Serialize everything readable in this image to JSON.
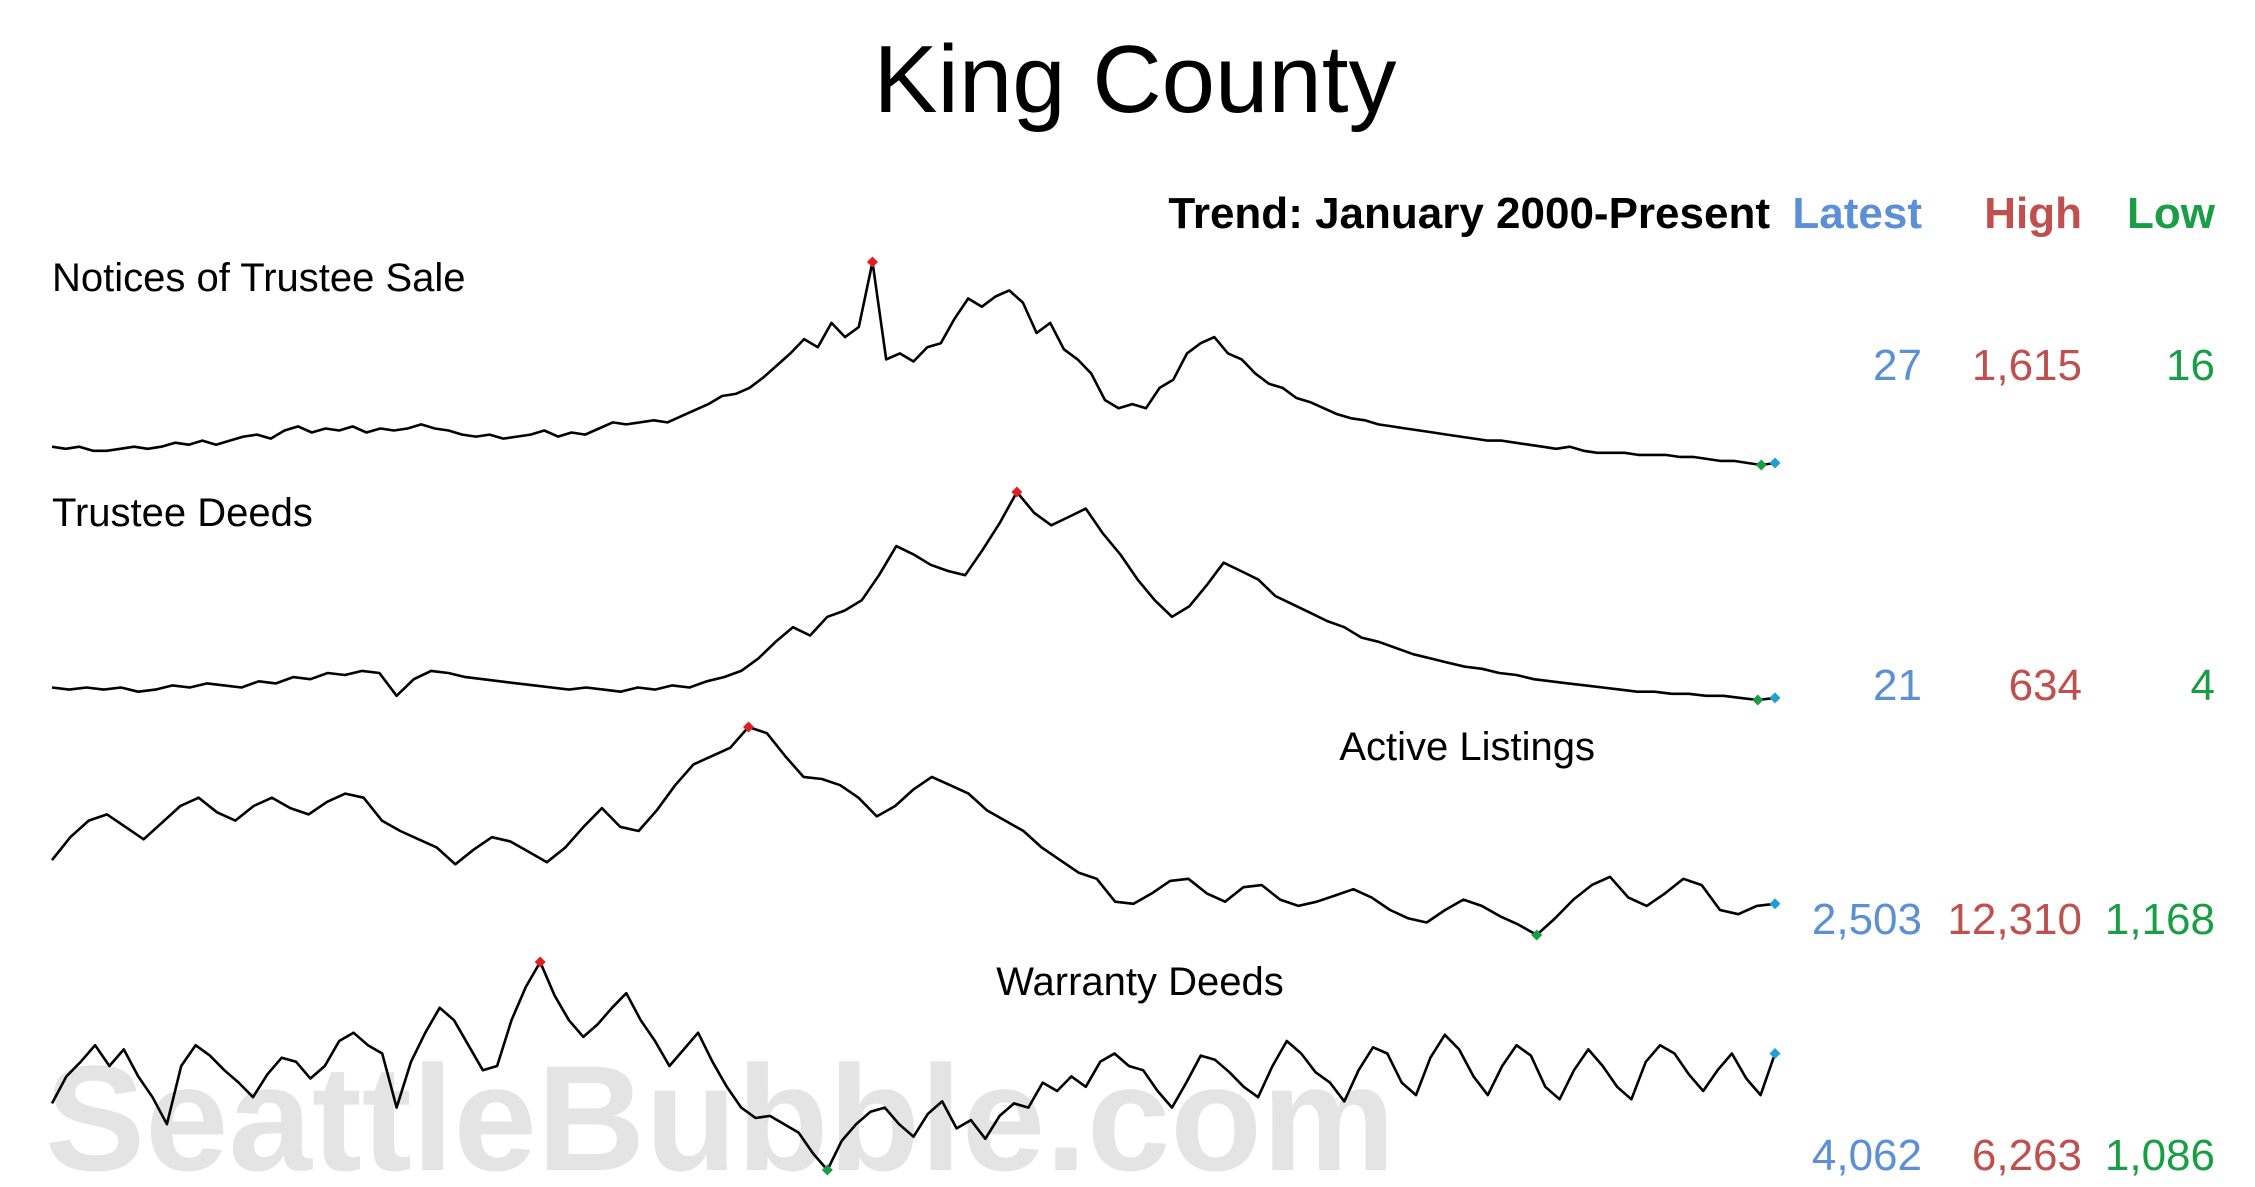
{
  "title": "King County",
  "header": {
    "trend": "Trend: January 2000-Present",
    "latest": "Latest",
    "high": "High",
    "low": "Low"
  },
  "watermark": "SeattleBubble.com",
  "colors": {
    "latest": "#5b8fd6",
    "high": "#c0504d",
    "low": "#1a9e45",
    "line": "#000000",
    "marker_high": "#e02020",
    "marker_low": "#1a9e45",
    "marker_latest": "#1e9fd8",
    "watermark": "#e4e4e4"
  },
  "chart_data": [
    {
      "type": "line",
      "name": "Notices of Trustee Sale",
      "x_range": [
        "2000-01",
        "present"
      ],
      "latest": "27",
      "high": "1,615",
      "low": "16",
      "shape": [
        0.09,
        0.08,
        0.09,
        0.07,
        0.07,
        0.08,
        0.09,
        0.08,
        0.09,
        0.11,
        0.1,
        0.12,
        0.1,
        0.12,
        0.14,
        0.15,
        0.13,
        0.17,
        0.19,
        0.16,
        0.18,
        0.17,
        0.19,
        0.16,
        0.18,
        0.17,
        0.18,
        0.2,
        0.18,
        0.17,
        0.15,
        0.14,
        0.15,
        0.13,
        0.14,
        0.15,
        0.17,
        0.14,
        0.16,
        0.15,
        0.18,
        0.21,
        0.2,
        0.21,
        0.22,
        0.21,
        0.24,
        0.27,
        0.3,
        0.34,
        0.35,
        0.38,
        0.43,
        0.49,
        0.55,
        0.62,
        0.58,
        0.7,
        0.63,
        0.68,
        1.0,
        0.52,
        0.55,
        0.51,
        0.58,
        0.6,
        0.72,
        0.82,
        0.78,
        0.83,
        0.86,
        0.8,
        0.65,
        0.7,
        0.57,
        0.52,
        0.45,
        0.32,
        0.28,
        0.3,
        0.28,
        0.38,
        0.42,
        0.55,
        0.6,
        0.63,
        0.55,
        0.52,
        0.45,
        0.4,
        0.38,
        0.33,
        0.31,
        0.28,
        0.25,
        0.23,
        0.22,
        0.2,
        0.19,
        0.18,
        0.17,
        0.16,
        0.15,
        0.14,
        0.13,
        0.12,
        0.12,
        0.11,
        0.1,
        0.09,
        0.08,
        0.09,
        0.07,
        0.06,
        0.06,
        0.06,
        0.05,
        0.05,
        0.05,
        0.04,
        0.04,
        0.03,
        0.02,
        0.02,
        0.01,
        0.0,
        0.01
      ],
      "label_pos": "top-left"
    },
    {
      "type": "line",
      "name": "Trustee Deeds",
      "x_range": [
        "2000-01",
        "present"
      ],
      "latest": "21",
      "high": "634",
      "low": "4",
      "shape": [
        0.06,
        0.05,
        0.06,
        0.05,
        0.06,
        0.04,
        0.05,
        0.07,
        0.06,
        0.08,
        0.07,
        0.06,
        0.09,
        0.08,
        0.11,
        0.1,
        0.13,
        0.12,
        0.14,
        0.13,
        0.02,
        0.1,
        0.14,
        0.13,
        0.11,
        0.1,
        0.09,
        0.08,
        0.07,
        0.06,
        0.05,
        0.06,
        0.05,
        0.04,
        0.06,
        0.05,
        0.07,
        0.06,
        0.09,
        0.11,
        0.14,
        0.2,
        0.28,
        0.35,
        0.31,
        0.4,
        0.43,
        0.48,
        0.6,
        0.74,
        0.7,
        0.65,
        0.62,
        0.6,
        0.72,
        0.85,
        1.0,
        0.9,
        0.84,
        0.88,
        0.92,
        0.8,
        0.7,
        0.58,
        0.48,
        0.4,
        0.45,
        0.55,
        0.66,
        0.62,
        0.58,
        0.5,
        0.46,
        0.42,
        0.38,
        0.35,
        0.3,
        0.28,
        0.25,
        0.22,
        0.2,
        0.18,
        0.16,
        0.15,
        0.13,
        0.12,
        0.1,
        0.09,
        0.08,
        0.07,
        0.06,
        0.05,
        0.04,
        0.04,
        0.03,
        0.03,
        0.02,
        0.02,
        0.01,
        0.0,
        0.01
      ],
      "label_pos": "top-left"
    },
    {
      "type": "line",
      "name": "Active Listings",
      "x_range": [
        "2000-01",
        "present"
      ],
      "latest": "2,503",
      "high": "12,310",
      "low": "1,168",
      "shape": [
        0.36,
        0.47,
        0.55,
        0.58,
        0.52,
        0.46,
        0.54,
        0.62,
        0.66,
        0.59,
        0.55,
        0.62,
        0.66,
        0.61,
        0.58,
        0.64,
        0.68,
        0.66,
        0.55,
        0.5,
        0.46,
        0.42,
        0.34,
        0.41,
        0.47,
        0.45,
        0.4,
        0.35,
        0.42,
        0.52,
        0.61,
        0.52,
        0.5,
        0.6,
        0.72,
        0.82,
        0.86,
        0.9,
        1.0,
        0.97,
        0.86,
        0.76,
        0.75,
        0.72,
        0.66,
        0.57,
        0.62,
        0.7,
        0.76,
        0.72,
        0.68,
        0.6,
        0.55,
        0.5,
        0.42,
        0.36,
        0.3,
        0.27,
        0.16,
        0.15,
        0.2,
        0.26,
        0.27,
        0.2,
        0.16,
        0.23,
        0.24,
        0.17,
        0.14,
        0.16,
        0.19,
        0.22,
        0.18,
        0.12,
        0.08,
        0.06,
        0.12,
        0.17,
        0.14,
        0.09,
        0.05,
        0.0,
        0.08,
        0.17,
        0.24,
        0.28,
        0.18,
        0.14,
        0.2,
        0.27,
        0.24,
        0.12,
        0.1,
        0.14,
        0.15
      ],
      "label_pos": "top-right"
    },
    {
      "type": "line",
      "name": "Warranty Deeds",
      "x_range": [
        "2000-01",
        "present"
      ],
      "latest": "4,062",
      "high": "6,263",
      "low": "1,086",
      "shape": [
        0.32,
        0.45,
        0.52,
        0.6,
        0.5,
        0.58,
        0.45,
        0.35,
        0.22,
        0.5,
        0.6,
        0.55,
        0.48,
        0.42,
        0.35,
        0.46,
        0.54,
        0.52,
        0.44,
        0.5,
        0.62,
        0.66,
        0.6,
        0.56,
        0.3,
        0.52,
        0.66,
        0.78,
        0.72,
        0.6,
        0.48,
        0.5,
        0.72,
        0.88,
        1.0,
        0.84,
        0.72,
        0.64,
        0.7,
        0.78,
        0.85,
        0.72,
        0.62,
        0.5,
        0.58,
        0.66,
        0.52,
        0.4,
        0.3,
        0.25,
        0.26,
        0.22,
        0.18,
        0.08,
        0.0,
        0.14,
        0.22,
        0.28,
        0.3,
        0.22,
        0.16,
        0.27,
        0.33,
        0.2,
        0.24,
        0.15,
        0.26,
        0.32,
        0.3,
        0.42,
        0.38,
        0.45,
        0.4,
        0.52,
        0.56,
        0.5,
        0.48,
        0.38,
        0.3,
        0.42,
        0.55,
        0.53,
        0.47,
        0.4,
        0.35,
        0.5,
        0.62,
        0.56,
        0.47,
        0.42,
        0.33,
        0.48,
        0.59,
        0.56,
        0.42,
        0.36,
        0.54,
        0.65,
        0.58,
        0.45,
        0.36,
        0.5,
        0.6,
        0.55,
        0.4,
        0.34,
        0.48,
        0.58,
        0.5,
        0.4,
        0.34,
        0.52,
        0.6,
        0.56,
        0.46,
        0.38,
        0.48,
        0.56,
        0.44,
        0.36,
        0.56
      ],
      "label_pos": "top-center"
    }
  ]
}
